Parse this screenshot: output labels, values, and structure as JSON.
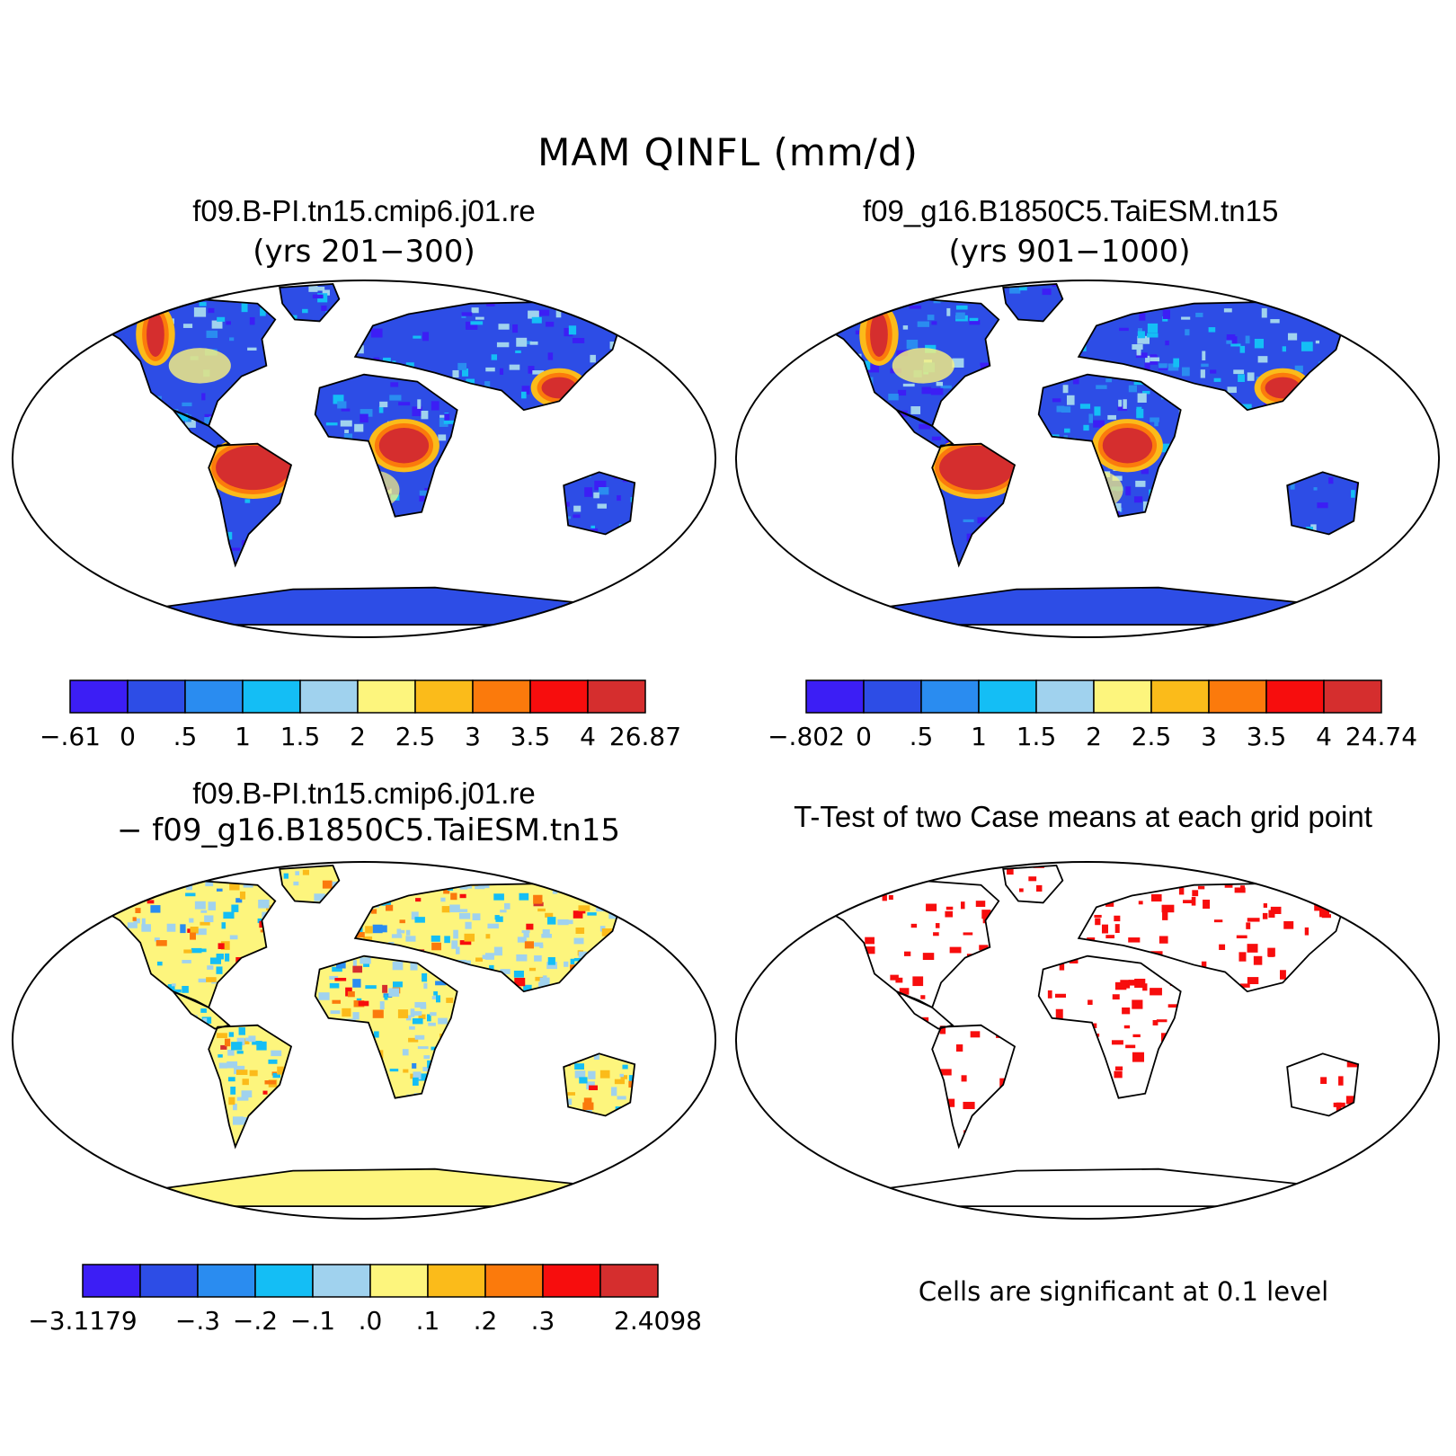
{
  "main_title": "MAM QINFL (mm/d)",
  "panels": [
    {
      "case": "f09.B-PI.tn15.cmip6.j01.re",
      "years": "(yrs 201−300)",
      "colorbar_labels": [
        "−.61",
        "0",
        ".5",
        "1",
        "1.5",
        "2",
        "2.5",
        "3",
        "3.5",
        "4",
        "26.87"
      ]
    },
    {
      "case": "f09_g16.B1850C5.TaiESM.tn15",
      "years": "(yrs 901−1000)",
      "colorbar_labels": [
        "−.802",
        "0",
        ".5",
        "1",
        "1.5",
        "2",
        "2.5",
        "3",
        "3.5",
        "4",
        "24.74"
      ]
    },
    {
      "case": "f09.B-PI.tn15.cmip6.j01.re",
      "case2": "− f09_g16.B1850C5.TaiESM.tn15",
      "colorbar_labels": [
        "−3.1179",
        "−.3",
        "−.2",
        "−.1",
        ".0",
        ".1",
        ".2",
        ".3",
        "2.4098"
      ]
    },
    {
      "title": "T-Test of two Case means at each grid point",
      "note": "Cells are significant at 0.1 level"
    }
  ],
  "colors": {
    "palette": [
      "#3c1ef5",
      "#2d4de6",
      "#2a8cf0",
      "#14bef5",
      "#a0d2ee",
      "#fdf57d",
      "#fbbb1a",
      "#fb7a0c",
      "#f70d0d",
      "#d52e2e"
    ],
    "significant": "#f70d0d",
    "coast": "#000000"
  }
}
